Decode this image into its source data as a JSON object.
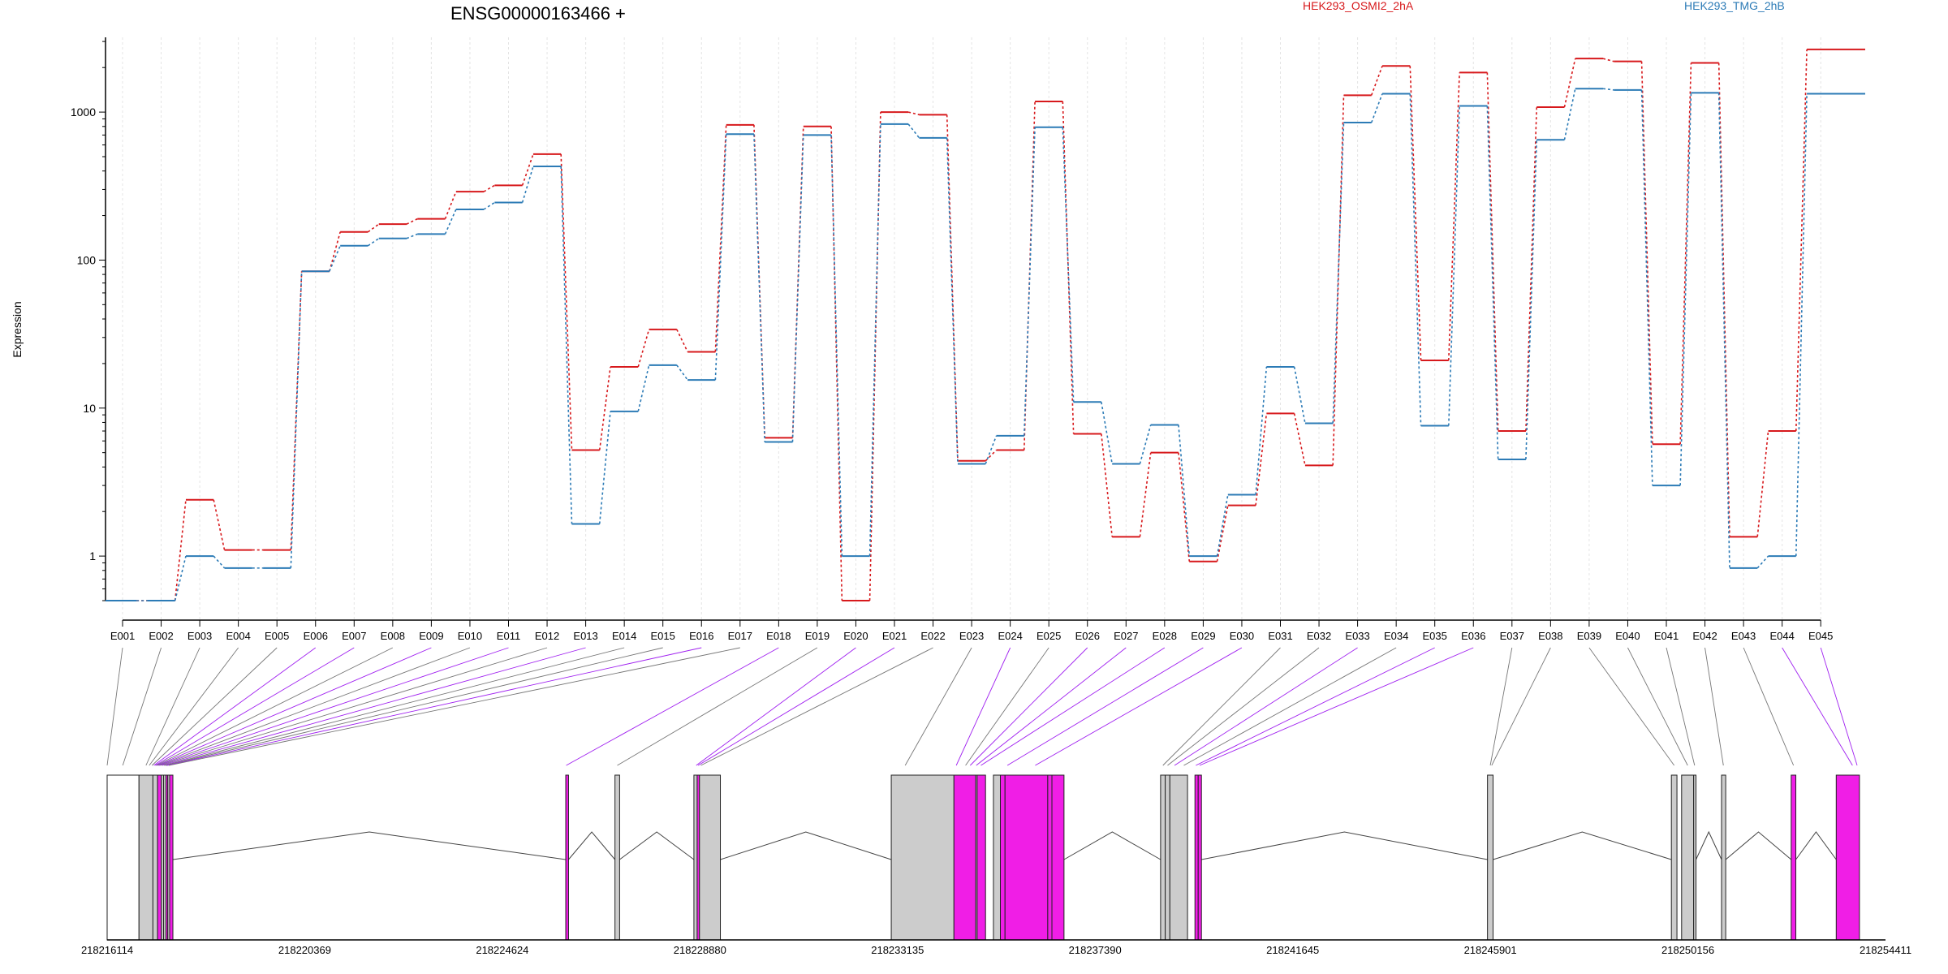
{
  "title": "ENSG00000163466 +",
  "colors": {
    "series1": "#d7191c",
    "series2": "#2c7bb6",
    "exon_grey": "#cccccc",
    "exon_magenta": "#f01ee6",
    "connector_magenta": "#a020f0",
    "grid": "#e4e4e4"
  },
  "chart_data": {
    "type": "line",
    "title": "ENSG00000163466 +",
    "xlabel": "",
    "ylabel": "Expression",
    "yscale": "log",
    "ylim": [
      0.5,
      3200
    ],
    "yticks": [
      "1",
      "10",
      "100",
      "1000"
    ],
    "grid": "vertical, light",
    "legend": "top-right",
    "categories": [
      "E001",
      "E002",
      "E003",
      "E004",
      "E005",
      "E006",
      "E007",
      "E008",
      "E009",
      "E010",
      "E011",
      "E012",
      "E013",
      "E014",
      "E015",
      "E016",
      "E017",
      "E018",
      "E019",
      "E020",
      "E021",
      "E022",
      "E023",
      "E024",
      "E025",
      "E026",
      "E027",
      "E028",
      "E029",
      "E030",
      "E031",
      "E032",
      "E033",
      "E034",
      "E035",
      "E036",
      "E037",
      "E038",
      "E039",
      "E040",
      "E041",
      "E042",
      "E043",
      "E044",
      "E045"
    ],
    "series": [
      {
        "name": "HEK293_OSMI2_2hA",
        "color": "#d7191c",
        "values": [
          0.5,
          0.5,
          2.4,
          1.1,
          1.1,
          84,
          155,
          175,
          190,
          290,
          320,
          520,
          5.2,
          19,
          34,
          24,
          820,
          6.3,
          800,
          0.5,
          1000,
          960,
          4.4,
          5.2,
          1180,
          6.7,
          1.35,
          5,
          0.92,
          2.2,
          9.2,
          4.1,
          1300,
          2050,
          21,
          1850,
          7,
          1080,
          2300,
          2200,
          5.7,
          2150,
          1.35,
          7,
          2650
        ]
      },
      {
        "name": "HEK293_TMG_2hB",
        "color": "#2c7bb6",
        "values": [
          0.5,
          0.5,
          1.0,
          0.83,
          0.83,
          84,
          125,
          140,
          150,
          220,
          245,
          430,
          1.65,
          9.5,
          19.5,
          15.5,
          710,
          5.9,
          700,
          1.0,
          830,
          670,
          4.2,
          6.5,
          790,
          11,
          4.2,
          7.7,
          1.0,
          2.6,
          19,
          7.9,
          850,
          1330,
          7.6,
          1100,
          4.5,
          650,
          1440,
          1410,
          3,
          1350,
          0.83,
          1.0,
          1330
        ]
      }
    ],
    "track": {
      "coord_labels": [
        "218216114",
        "218220369",
        "218224624",
        "218228880",
        "218233135",
        "218237390",
        "218241645",
        "218245901",
        "218250156",
        "218254411"
      ],
      "coord_range": [
        218216114,
        218254411
      ],
      "exons": [
        {
          "start": 218216114,
          "end": 218216800,
          "color": "white"
        },
        {
          "start": 218216800,
          "end": 218217100,
          "color": "grey"
        },
        {
          "start": 218217100,
          "end": 218217200,
          "color": "grey"
        },
        {
          "start": 218217200,
          "end": 218217280,
          "color": "magenta"
        },
        {
          "start": 218217280,
          "end": 218217330,
          "color": "grey"
        },
        {
          "start": 218217330,
          "end": 218217380,
          "color": "grey"
        },
        {
          "start": 218217380,
          "end": 218217420,
          "color": "magenta"
        },
        {
          "start": 218217420,
          "end": 218217460,
          "color": "grey"
        },
        {
          "start": 218217460,
          "end": 218217530,
          "color": "magenta"
        },
        {
          "start": 218225990,
          "end": 218226050,
          "color": "magenta"
        },
        {
          "start": 218227050,
          "end": 218227150,
          "color": "grey"
        },
        {
          "start": 218228750,
          "end": 218228820,
          "color": "grey"
        },
        {
          "start": 218228820,
          "end": 218228870,
          "color": "magenta"
        },
        {
          "start": 218228870,
          "end": 218229320,
          "color": "grey"
        },
        {
          "start": 218233000,
          "end": 218234350,
          "color": "grey"
        },
        {
          "start": 218234350,
          "end": 218234820,
          "color": "magenta"
        },
        {
          "start": 218234820,
          "end": 218234850,
          "color": "grey"
        },
        {
          "start": 218234850,
          "end": 218235030,
          "color": "magenta"
        },
        {
          "start": 218235200,
          "end": 218235350,
          "color": "grey"
        },
        {
          "start": 218235350,
          "end": 218235450,
          "color": "magenta"
        },
        {
          "start": 218235450,
          "end": 218236370,
          "color": "magenta"
        },
        {
          "start": 218236370,
          "end": 218236460,
          "color": "magenta"
        },
        {
          "start": 218236460,
          "end": 218236720,
          "color": "magenta"
        },
        {
          "start": 218238800,
          "end": 218238900,
          "color": "grey"
        },
        {
          "start": 218238900,
          "end": 218239000,
          "color": "grey"
        },
        {
          "start": 218239000,
          "end": 218239380,
          "color": "grey"
        },
        {
          "start": 218239540,
          "end": 218239610,
          "color": "magenta"
        },
        {
          "start": 218239610,
          "end": 218239680,
          "color": "magenta"
        },
        {
          "start": 218245840,
          "end": 218245960,
          "color": "grey"
        },
        {
          "start": 218249800,
          "end": 218249920,
          "color": "grey"
        },
        {
          "start": 218250020,
          "end": 218250280,
          "color": "grey"
        },
        {
          "start": 218250280,
          "end": 218250330,
          "color": "grey"
        },
        {
          "start": 218250880,
          "end": 218250970,
          "color": "grey"
        },
        {
          "start": 218252380,
          "end": 218252480,
          "color": "magenta"
        },
        {
          "start": 218253350,
          "end": 218253850,
          "color": "magenta"
        }
      ],
      "introns": [
        [
          218217530,
          218225990
        ],
        [
          218226050,
          218227050
        ],
        [
          218227150,
          218228750
        ],
        [
          218229320,
          218233000
        ],
        [
          218236720,
          218238800
        ],
        [
          218239680,
          218245840
        ],
        [
          218245960,
          218249800
        ],
        [
          218250330,
          218250880
        ],
        [
          218250970,
          218252380
        ],
        [
          218252480,
          218253350
        ]
      ],
      "connector_targets": [
        218216114,
        218216450,
        218216950,
        218217020,
        218217080,
        218217120,
        218217150,
        218217170,
        218217190,
        218217210,
        218217230,
        218217260,
        218217300,
        218217340,
        218217370,
        218217400,
        218217440,
        218226000,
        218227100,
        218228800,
        218228840,
        218228900,
        218233300,
        218234400,
        218234600,
        218234700,
        218234830,
        218234930,
        218235500,
        218236100,
        218238850,
        218238950,
        218239100,
        218239300,
        218239560,
        218239640,
        218245900,
        218245930,
        218249860,
        218250150,
        218250300,
        218250920,
        218252430,
        218253700,
        218253800
      ],
      "connector_colors": [
        "grey",
        "grey",
        "grey",
        "grey",
        "grey",
        "magenta",
        "magenta",
        "grey",
        "magenta",
        "grey",
        "magenta",
        "grey",
        "magenta",
        "grey",
        "grey",
        "magenta",
        "grey",
        "magenta",
        "grey",
        "magenta",
        "magenta",
        "grey",
        "grey",
        "magenta",
        "grey",
        "magenta",
        "magenta",
        "magenta",
        "magenta",
        "magenta",
        "grey",
        "grey",
        "magenta",
        "grey",
        "magenta",
        "magenta",
        "grey",
        "grey",
        "grey",
        "grey",
        "grey",
        "grey",
        "grey",
        "magenta",
        "magenta"
      ]
    }
  }
}
